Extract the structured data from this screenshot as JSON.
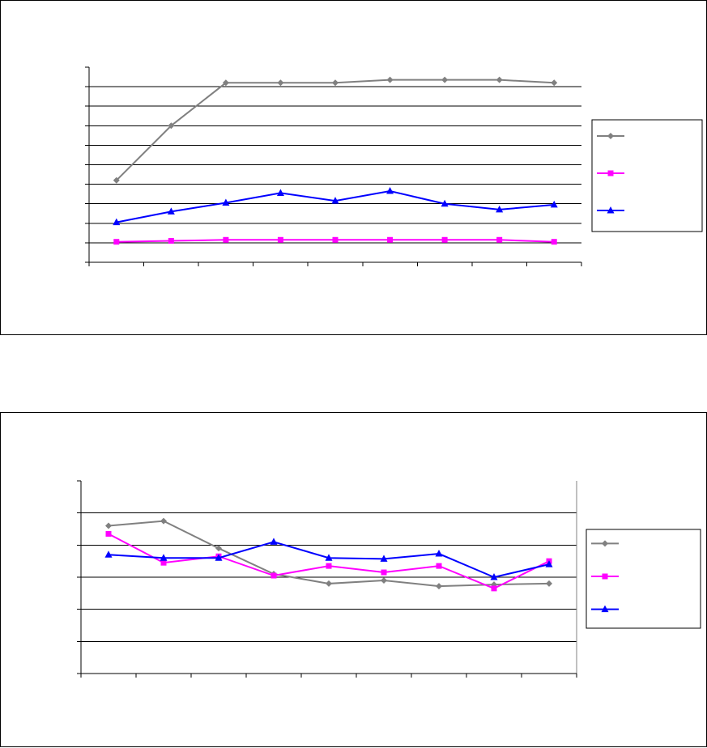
{
  "chart_data": [
    {
      "type": "line",
      "title": "",
      "xlabel": "",
      "ylabel": "",
      "x": [
        1,
        2,
        3,
        4,
        5,
        6,
        7,
        8,
        9
      ],
      "ylim": [
        0,
        10
      ],
      "y_gridlines": [
        1,
        2,
        3,
        4,
        5,
        6,
        7,
        8,
        9
      ],
      "grid": true,
      "legend_position": "right",
      "series": [
        {
          "color": "#808080",
          "marker": "diamond",
          "values": [
            4.2,
            7.0,
            9.2,
            9.2,
            9.2,
            9.35,
            9.35,
            9.35,
            9.2
          ]
        },
        {
          "color": "#ff00ff",
          "marker": "square",
          "values": [
            1.05,
            1.1,
            1.15,
            1.15,
            1.15,
            1.15,
            1.15,
            1.15,
            1.05
          ]
        },
        {
          "color": "#0000ff",
          "marker": "triangle",
          "values": [
            2.05,
            2.6,
            3.05,
            3.55,
            3.15,
            3.65,
            3.0,
            2.7,
            2.95
          ]
        }
      ]
    },
    {
      "type": "line",
      "title": "",
      "xlabel": "",
      "ylabel": "",
      "x": [
        1,
        2,
        3,
        4,
        5,
        6,
        7,
        8,
        9
      ],
      "ylim": [
        0,
        6
      ],
      "y_gridlines": [
        1,
        2,
        3,
        4,
        5
      ],
      "grid": true,
      "legend_position": "right",
      "series": [
        {
          "color": "#808080",
          "marker": "diamond",
          "values": [
            4.6,
            4.75,
            3.9,
            3.1,
            2.8,
            2.9,
            2.72,
            2.77,
            2.8
          ]
        },
        {
          "color": "#ff00ff",
          "marker": "square",
          "values": [
            4.35,
            3.45,
            3.65,
            3.05,
            3.35,
            3.15,
            3.35,
            2.65,
            3.5
          ]
        },
        {
          "color": "#0000ff",
          "marker": "triangle",
          "values": [
            3.7,
            3.6,
            3.6,
            4.1,
            3.6,
            3.57,
            3.73,
            3.0,
            3.4
          ]
        }
      ]
    }
  ]
}
